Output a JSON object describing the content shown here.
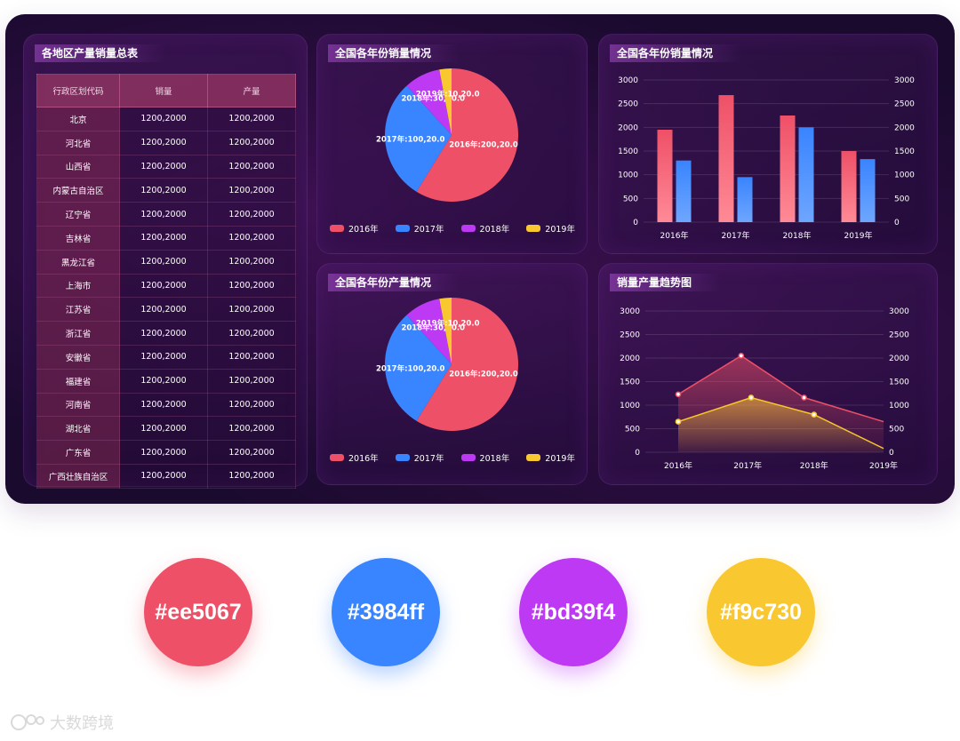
{
  "table_panel": {
    "title": "各地区产量销量总表",
    "headers": [
      "行政区划代码",
      "销量",
      "产量"
    ],
    "rows": [
      {
        "region": "北京",
        "sales": "1200,2000",
        "output": "1200,2000"
      },
      {
        "region": "河北省",
        "sales": "1200,2000",
        "output": "1200,2000"
      },
      {
        "region": "山西省",
        "sales": "1200,2000",
        "output": "1200,2000"
      },
      {
        "region": "内蒙古自治区",
        "sales": "1200,2000",
        "output": "1200,2000"
      },
      {
        "region": "辽宁省",
        "sales": "1200,2000",
        "output": "1200,2000"
      },
      {
        "region": "吉林省",
        "sales": "1200,2000",
        "output": "1200,2000"
      },
      {
        "region": "黑龙江省",
        "sales": "1200,2000",
        "output": "1200,2000"
      },
      {
        "region": "上海市",
        "sales": "1200,2000",
        "output": "1200,2000"
      },
      {
        "region": "江苏省",
        "sales": "1200,2000",
        "output": "1200,2000"
      },
      {
        "region": "浙江省",
        "sales": "1200,2000",
        "output": "1200,2000"
      },
      {
        "region": "安徽省",
        "sales": "1200,2000",
        "output": "1200,2000"
      },
      {
        "region": "福建省",
        "sales": "1200,2000",
        "output": "1200,2000"
      },
      {
        "region": "河南省",
        "sales": "1200,2000",
        "output": "1200,2000"
      },
      {
        "region": "湖北省",
        "sales": "1200,2000",
        "output": "1200,2000"
      },
      {
        "region": "广东省",
        "sales": "1200,2000",
        "output": "1200,2000"
      },
      {
        "region": "广西壮族自治区",
        "sales": "1200,2000",
        "output": "1200,2000"
      }
    ]
  },
  "colors": {
    "c2016": "#ee5067",
    "c2017": "#3984ff",
    "c2018": "#bd39f4",
    "c2019": "#f9c730"
  },
  "chart_data": [
    {
      "type": "pie",
      "title": "全国各年份销量情况",
      "slices": [
        {
          "name": "2016年",
          "value": 200,
          "label": "2016年:200,20.0",
          "color": "#ee5067"
        },
        {
          "name": "2017年",
          "value": 100,
          "label": "2017年:100,20.0",
          "color": "#3984ff"
        },
        {
          "name": "2018年",
          "value": 30,
          "label": "2018年:30,20.0",
          "color": "#bd39f4"
        },
        {
          "name": "2019年",
          "value": 10,
          "label": "2019年:10,20.0",
          "color": "#f9c730"
        }
      ],
      "legend": [
        "2016年",
        "2017年",
        "2018年",
        "2019年"
      ],
      "legend_position": "bottom"
    },
    {
      "type": "bar",
      "title": "全国各年份销量情况",
      "categories": [
        "2016年",
        "2017年",
        "2018年",
        "2019年"
      ],
      "series": [
        {
          "values": [
            1950,
            2680,
            2250,
            1500
          ],
          "color": "#ee5067"
        },
        {
          "values": [
            1300,
            950,
            2000,
            1330
          ],
          "color": "#3984ff"
        }
      ],
      "ylim": [
        0,
        3000
      ],
      "yticks": [
        0,
        500,
        1000,
        1500,
        2000,
        2500,
        3000
      ],
      "right_axis_ticks": [
        0,
        500,
        1000,
        1500,
        2000,
        2500,
        3000
      ],
      "grid": true
    },
    {
      "type": "pie",
      "title": "全国各年份产量情况",
      "slices": [
        {
          "name": "2016年",
          "value": 200,
          "label": "2016年:200,20.0",
          "color": "#ee5067"
        },
        {
          "name": "2017年",
          "value": 100,
          "label": "2017年:100,20.0",
          "color": "#3984ff"
        },
        {
          "name": "2018年",
          "value": 30,
          "label": "2018年:30,20.0",
          "color": "#bd39f4"
        },
        {
          "name": "2019年",
          "value": 10,
          "label": "2019年:10,20.0",
          "color": "#f9c730"
        }
      ],
      "legend": [
        "2016年",
        "2017年",
        "2018年",
        "2019年"
      ],
      "legend_position": "bottom"
    },
    {
      "type": "area",
      "title": "销量产量趋势图",
      "x": [
        "2016年",
        "2017年",
        "2018年",
        "2019年"
      ],
      "series": [
        {
          "points": [
            [
              2015.8,
              1230
            ],
            [
              2016.75,
              2050
            ],
            [
              2017.7,
              1160
            ],
            [
              2018.9,
              650
            ]
          ],
          "color": "#ee5067"
        },
        {
          "points": [
            [
              2015.8,
              650
            ],
            [
              2016.9,
              1160
            ],
            [
              2017.85,
              800
            ],
            [
              2018.9,
              80
            ]
          ],
          "color": "#f9c730"
        }
      ],
      "ylim": [
        0,
        3000
      ],
      "yticks": [
        0,
        500,
        1000,
        1500,
        2000,
        2500,
        3000
      ],
      "right_axis_ticks": [
        0,
        500,
        1000,
        1500,
        2000,
        2500,
        3000
      ],
      "grid": true
    }
  ],
  "swatches": [
    "#ee5067",
    "#3984ff",
    "#bd39f4",
    "#f9c730"
  ],
  "watermark": "大数跨境"
}
